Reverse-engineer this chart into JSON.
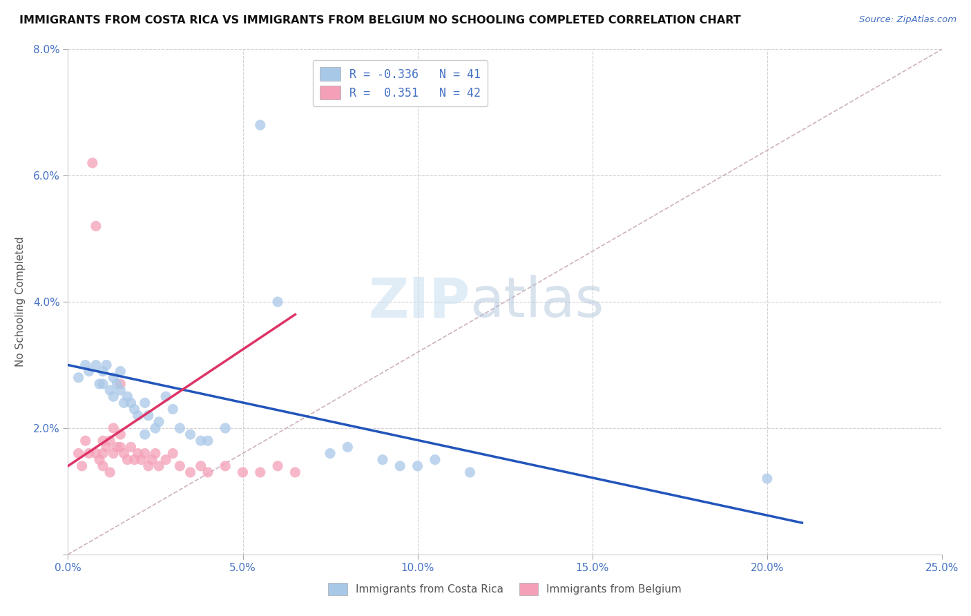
{
  "title": "IMMIGRANTS FROM COSTA RICA VS IMMIGRANTS FROM BELGIUM NO SCHOOLING COMPLETED CORRELATION CHART",
  "source_text": "Source: ZipAtlas.com",
  "ylabel": "No Schooling Completed",
  "xlim": [
    0.0,
    0.25
  ],
  "ylim": [
    0.0,
    0.08
  ],
  "xticks": [
    0.0,
    0.05,
    0.1,
    0.15,
    0.2,
    0.25
  ],
  "yticks": [
    0.0,
    0.02,
    0.04,
    0.06,
    0.08
  ],
  "xticklabels": [
    "0.0%",
    "5.0%",
    "10.0%",
    "15.0%",
    "20.0%",
    "25.0%"
  ],
  "yticklabels": [
    "",
    "2.0%",
    "4.0%",
    "6.0%",
    "8.0%"
  ],
  "legend_R1": "-0.336",
  "legend_N1": "41",
  "legend_R2": "0.351",
  "legend_N2": "42",
  "color_blue": "#a8c8e8",
  "color_pink": "#f4a0b8",
  "color_blue_text": "#4472c4",
  "color_trend_blue": "#2255bb",
  "color_trend_pink": "#dd3366",
  "color_diag": "#c8a8b8",
  "background": "#ffffff",
  "watermark_zip": "ZIP",
  "watermark_atlas": "atlas",
  "blue_x": [
    0.003,
    0.005,
    0.006,
    0.008,
    0.009,
    0.01,
    0.01,
    0.011,
    0.012,
    0.013,
    0.013,
    0.014,
    0.015,
    0.015,
    0.016,
    0.017,
    0.018,
    0.019,
    0.02,
    0.022,
    0.023,
    0.025,
    0.026,
    0.028,
    0.03,
    0.032,
    0.035,
    0.038,
    0.04,
    0.045,
    0.055,
    0.06,
    0.075,
    0.08,
    0.09,
    0.095,
    0.1,
    0.105,
    0.115,
    0.2,
    0.022
  ],
  "blue_y": [
    0.028,
    0.03,
    0.029,
    0.03,
    0.027,
    0.029,
    0.027,
    0.03,
    0.026,
    0.028,
    0.025,
    0.027,
    0.029,
    0.026,
    0.024,
    0.025,
    0.024,
    0.023,
    0.022,
    0.024,
    0.022,
    0.02,
    0.021,
    0.025,
    0.023,
    0.02,
    0.019,
    0.018,
    0.018,
    0.02,
    0.068,
    0.04,
    0.016,
    0.017,
    0.015,
    0.014,
    0.014,
    0.015,
    0.013,
    0.012,
    0.019
  ],
  "pink_x": [
    0.003,
    0.004,
    0.005,
    0.006,
    0.007,
    0.008,
    0.009,
    0.01,
    0.01,
    0.011,
    0.012,
    0.013,
    0.013,
    0.014,
    0.015,
    0.015,
    0.016,
    0.017,
    0.018,
    0.019,
    0.02,
    0.021,
    0.022,
    0.023,
    0.024,
    0.025,
    0.026,
    0.028,
    0.03,
    0.032,
    0.035,
    0.038,
    0.04,
    0.045,
    0.05,
    0.055,
    0.06,
    0.065,
    0.008,
    0.01,
    0.012,
    0.015
  ],
  "pink_y": [
    0.016,
    0.014,
    0.018,
    0.016,
    0.062,
    0.016,
    0.015,
    0.018,
    0.016,
    0.017,
    0.018,
    0.02,
    0.016,
    0.017,
    0.019,
    0.017,
    0.016,
    0.015,
    0.017,
    0.015,
    0.016,
    0.015,
    0.016,
    0.014,
    0.015,
    0.016,
    0.014,
    0.015,
    0.016,
    0.014,
    0.013,
    0.014,
    0.013,
    0.014,
    0.013,
    0.013,
    0.014,
    0.013,
    0.052,
    0.014,
    0.013,
    0.027
  ],
  "blue_trend_x": [
    0.0,
    0.21
  ],
  "blue_trend_y": [
    0.03,
    0.005
  ],
  "pink_trend_x": [
    0.0,
    0.065
  ],
  "pink_trend_y": [
    0.014,
    0.038
  ]
}
